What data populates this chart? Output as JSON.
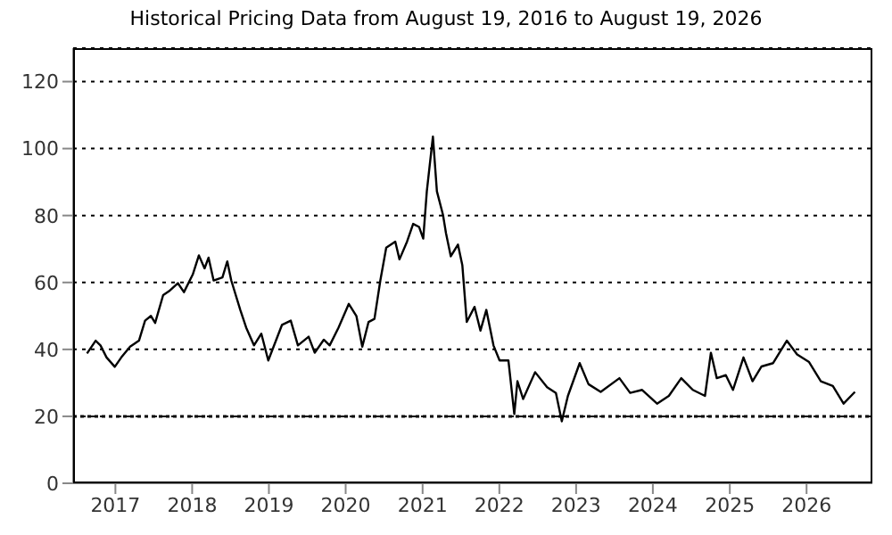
{
  "chart_data": {
    "type": "line",
    "title": "Historical Pricing Data from August 19, 2016 to August 19, 2026",
    "x": [
      "2016-08-19",
      "2016-09-29",
      "2016-10-22",
      "2016-11-20",
      "2016-12-29",
      "2017-01-29",
      "2017-03-12",
      "2017-04-23",
      "2017-05-22",
      "2017-06-19",
      "2017-07-09",
      "2017-08-16",
      "2017-09-13",
      "2017-10-25",
      "2017-11-23",
      "2018-01-04",
      "2018-02-02",
      "2018-03-01",
      "2018-03-20",
      "2018-04-13",
      "2018-05-25",
      "2018-06-17",
      "2018-07-06",
      "2018-08-18",
      "2018-09-15",
      "2018-10-22",
      "2018-11-26",
      "2018-12-29",
      "2019-03-04",
      "2019-04-15",
      "2019-05-19",
      "2019-07-09",
      "2019-08-07",
      "2019-09-19",
      "2019-10-17",
      "2019-11-28",
      "2020-01-16",
      "2020-02-21",
      "2020-03-20",
      "2020-04-19",
      "2020-05-17",
      "2020-06-14",
      "2020-07-12",
      "2020-08-24",
      "2020-09-13",
      "2020-10-19",
      "2020-11-17",
      "2020-12-15",
      "2021-01-04",
      "2021-01-21",
      "2021-02-19",
      "2021-03-10",
      "2021-04-08",
      "2021-04-22",
      "2021-05-15",
      "2021-06-18",
      "2021-07-09",
      "2021-07-30",
      "2021-09-05",
      "2021-10-03",
      "2021-10-31",
      "2021-12-04",
      "2022-01-02",
      "2022-02-13",
      "2022-03-13",
      "2022-03-28",
      "2022-04-24",
      "2022-06-20",
      "2022-08-16",
      "2022-09-27",
      "2022-10-25",
      "2022-11-23",
      "2023-01-18",
      "2023-03-01",
      "2023-04-28",
      "2023-07-26",
      "2023-09-15",
      "2023-11-11",
      "2024-01-21",
      "2024-03-17",
      "2024-05-15",
      "2024-07-09",
      "2024-09-05",
      "2024-10-03",
      "2024-10-31",
      "2024-12-13",
      "2025-01-16",
      "2025-03-07",
      "2025-04-19",
      "2025-06-01",
      "2025-07-26",
      "2025-09-29",
      "2025-11-17",
      "2026-01-13",
      "2026-03-10",
      "2026-05-06",
      "2026-06-26",
      "2026-08-19"
    ],
    "series": [
      {
        "color": "#000000",
        "values": [
          38.8,
          42.6,
          41.2,
          37.6,
          34.8,
          37.6,
          40.8,
          42.6,
          48.6,
          50,
          47.9,
          56.2,
          57.4,
          59.8,
          57.1,
          62.4,
          68.1,
          64.2,
          67.4,
          60.6,
          61.5,
          66.3,
          60.6,
          51.8,
          46.5,
          41.2,
          44.7,
          36.7,
          47.3,
          48.6,
          41.2,
          43.8,
          39,
          42.9,
          41.2,
          46.5,
          53.6,
          50,
          40.8,
          48.2,
          49.1,
          60.6,
          70.4,
          72.2,
          66.9,
          72.2,
          77.5,
          76.6,
          73.1,
          87.2,
          103.6,
          87.2,
          80.2,
          74.8,
          67.8,
          71.3,
          65.1,
          48.2,
          52.7,
          45.6,
          51.8,
          41.2,
          36.7,
          36.7,
          20.7,
          30.5,
          25.2,
          33.2,
          28.7,
          27,
          18.5,
          26.1,
          35.9,
          29.6,
          27.3,
          31.4,
          27,
          27.9,
          23.8,
          26.1,
          31.4,
          27.9,
          26.1,
          39,
          31.4,
          32.3,
          27.9,
          37.6,
          30.5,
          34.9,
          35.9,
          42.6,
          38.5,
          36.2,
          30.5,
          29.1,
          23.8,
          27.3
        ]
      }
    ],
    "xlim": [
      "2016-06-14",
      "2026-11-10"
    ],
    "xticks": [
      {
        "value": "2017-01-01",
        "label": "2017"
      },
      {
        "value": "2018-01-01",
        "label": "2018"
      },
      {
        "value": "2019-01-01",
        "label": "2019"
      },
      {
        "value": "2020-01-01",
        "label": "2020"
      },
      {
        "value": "2021-01-01",
        "label": "2021"
      },
      {
        "value": "2022-01-01",
        "label": "2022"
      },
      {
        "value": "2023-01-01",
        "label": "2023"
      },
      {
        "value": "2024-01-01",
        "label": "2024"
      },
      {
        "value": "2025-01-01",
        "label": "2025"
      },
      {
        "value": "2026-01-01",
        "label": "2026"
      }
    ],
    "ylim": [
      0,
      130
    ],
    "yticks": [
      0,
      20,
      40,
      60,
      80,
      100,
      120
    ],
    "grid": "y",
    "marker": "none",
    "line_style": "solid",
    "ref_lines": [
      {
        "axis": "y",
        "value": 20,
        "color": "#000000",
        "line_style": "dotted"
      }
    ]
  }
}
